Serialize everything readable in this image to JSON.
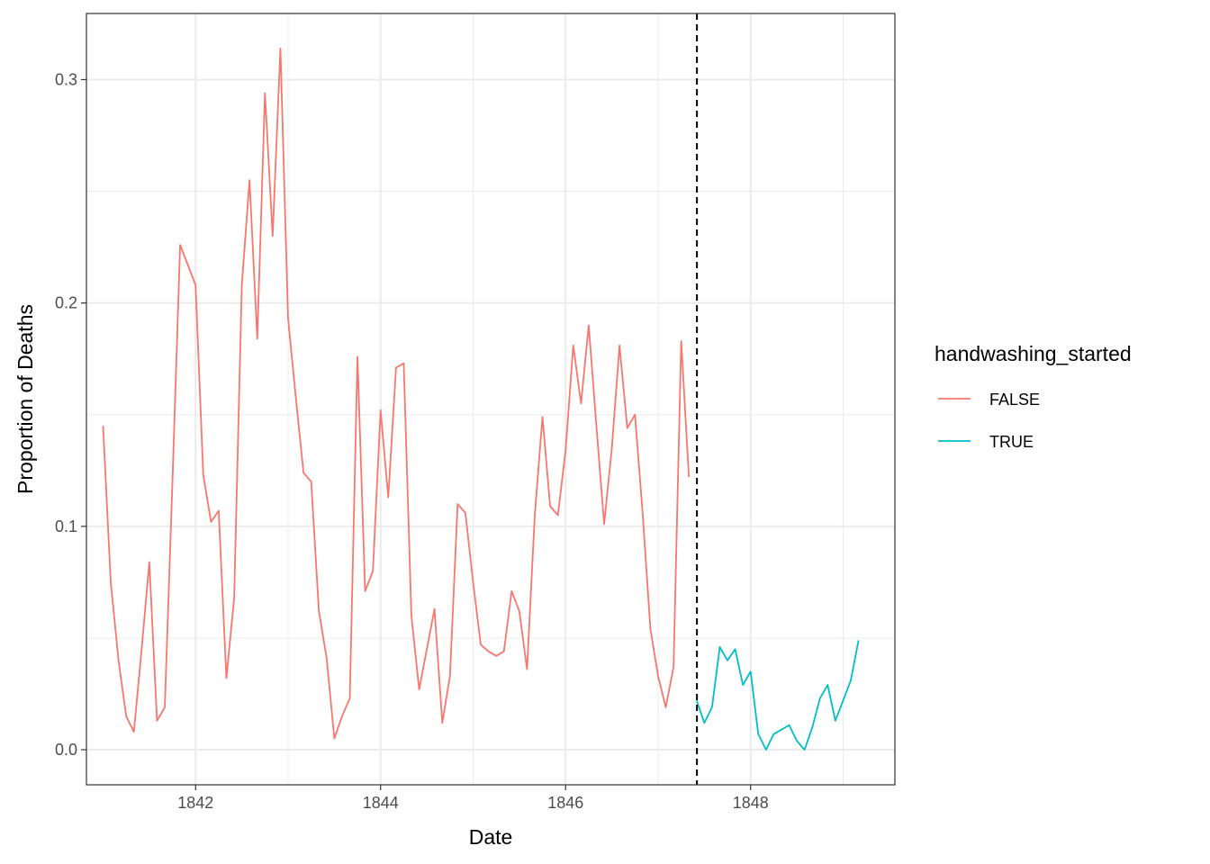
{
  "chart_data": {
    "type": "line",
    "xlabel": "Date",
    "ylabel": "Proportion of Deaths",
    "xlim": [
      1840.82,
      1849.56
    ],
    "ylim": [
      -0.0157,
      0.3296
    ],
    "x_ticks": [
      1842,
      1844,
      1846,
      1848
    ],
    "x_minor_ticks": [
      1843,
      1845,
      1847,
      1849
    ],
    "x_tick_labels": [
      "1842",
      "1844",
      "1846",
      "1848"
    ],
    "y_ticks": [
      0.0,
      0.1,
      0.2,
      0.3
    ],
    "y_minor_ticks": [
      0.05,
      0.15,
      0.25
    ],
    "y_tick_labels": [
      "0.0",
      "0.1",
      "0.2",
      "0.3"
    ],
    "grid": true,
    "vline": {
      "x": 1847.42,
      "style": "dashed",
      "color": "#000000"
    },
    "legend": {
      "title": "handwashing_started",
      "position": "right"
    },
    "series": [
      {
        "name": "FALSE",
        "color": "#F8766D",
        "x": [
          1841.0,
          1841.083,
          1841.167,
          1841.25,
          1841.333,
          1841.417,
          1841.5,
          1841.583,
          1841.667,
          1841.75,
          1841.833,
          1841.917,
          1842.0,
          1842.083,
          1842.167,
          1842.25,
          1842.333,
          1842.417,
          1842.5,
          1842.583,
          1842.667,
          1842.75,
          1842.833,
          1842.917,
          1843.0,
          1843.083,
          1843.167,
          1843.25,
          1843.333,
          1843.417,
          1843.5,
          1843.583,
          1843.667,
          1843.75,
          1843.833,
          1843.917,
          1844.0,
          1844.083,
          1844.167,
          1844.25,
          1844.333,
          1844.417,
          1844.5,
          1844.583,
          1844.667,
          1844.75,
          1844.833,
          1844.917,
          1845.0,
          1845.083,
          1845.167,
          1845.25,
          1845.333,
          1845.417,
          1845.5,
          1845.583,
          1845.667,
          1845.75,
          1845.833,
          1845.917,
          1846.0,
          1846.083,
          1846.167,
          1846.25,
          1846.333,
          1846.417,
          1846.5,
          1846.583,
          1846.667,
          1846.75,
          1846.833,
          1846.917,
          1847.0,
          1847.083,
          1847.167,
          1847.25,
          1847.333
        ],
        "y": [
          0.145,
          0.075,
          0.04,
          0.015,
          0.008,
          0.045,
          0.084,
          0.013,
          0.019,
          0.12,
          0.226,
          0.217,
          0.208,
          0.123,
          0.102,
          0.107,
          0.032,
          0.068,
          0.208,
          0.255,
          0.184,
          0.294,
          0.23,
          0.314,
          0.193,
          0.158,
          0.124,
          0.12,
          0.062,
          0.041,
          0.005,
          0.015,
          0.023,
          0.176,
          0.071,
          0.08,
          0.152,
          0.113,
          0.171,
          0.173,
          0.06,
          0.027,
          0.045,
          0.063,
          0.012,
          0.033,
          0.11,
          0.106,
          0.075,
          0.047,
          0.044,
          0.042,
          0.044,
          0.071,
          0.062,
          0.036,
          0.105,
          0.149,
          0.109,
          0.105,
          0.134,
          0.181,
          0.155,
          0.19,
          0.145,
          0.101,
          0.135,
          0.181,
          0.144,
          0.15,
          0.106,
          0.054,
          0.033,
          0.019,
          0.037,
          0.183,
          0.122
        ]
      },
      {
        "name": "TRUE",
        "color": "#00BFC4",
        "x": [
          1847.417,
          1847.5,
          1847.583,
          1847.667,
          1847.75,
          1847.833,
          1847.917,
          1848.0,
          1848.083,
          1848.167,
          1848.25,
          1848.333,
          1848.417,
          1848.5,
          1848.583,
          1848.667,
          1848.75,
          1848.833,
          1848.917,
          1849.0,
          1849.083,
          1849.167
        ],
        "y": [
          0.022,
          0.012,
          0.019,
          0.046,
          0.04,
          0.045,
          0.029,
          0.035,
          0.007,
          0.0,
          0.007,
          0.009,
          0.011,
          0.004,
          0.0,
          0.01,
          0.023,
          0.029,
          0.013,
          0.022,
          0.031,
          0.049
        ]
      }
    ]
  }
}
